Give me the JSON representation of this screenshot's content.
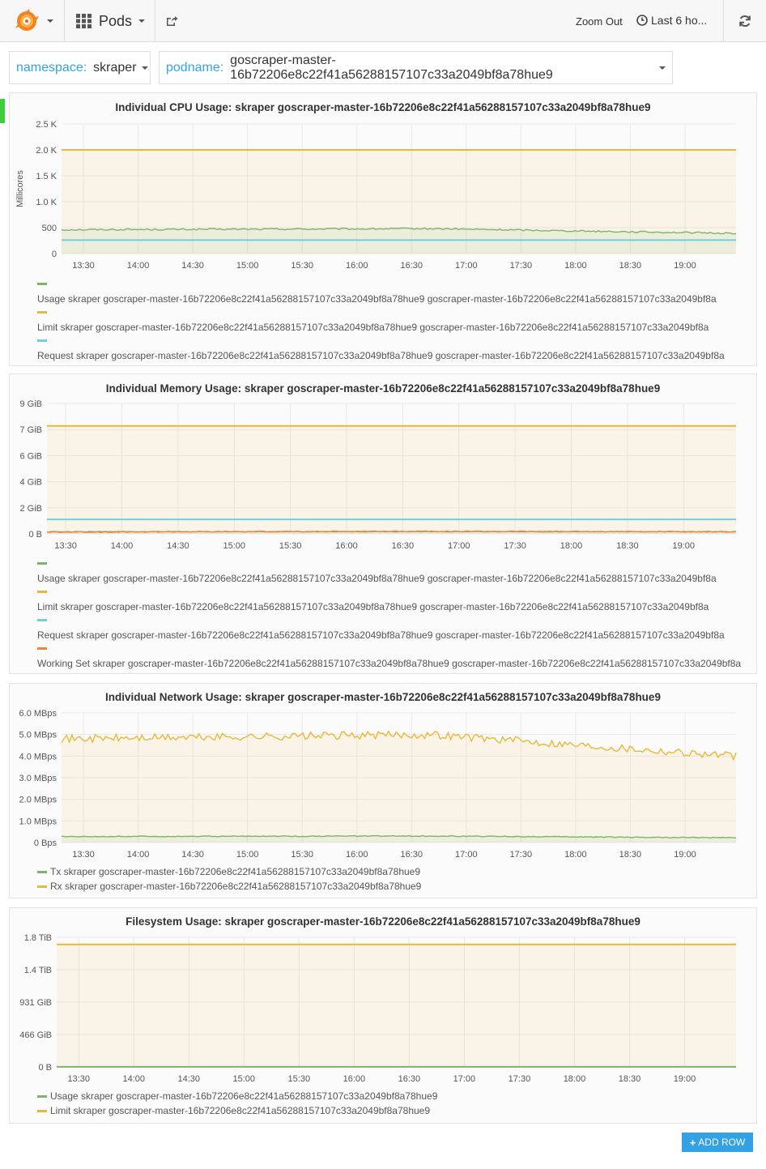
{
  "navbar": {
    "dashboard_title": "Pods",
    "zoom_out": "Zoom Out",
    "time_range": "Last 6 ho..."
  },
  "icons": {
    "logo": "grafana-logo-icon",
    "dashboard": "grid-icon",
    "share": "share-icon",
    "time": "clock-icon",
    "refresh": "refresh-icon"
  },
  "variables": {
    "namespace": {
      "label": "namespace:",
      "value": "skraper"
    },
    "podname": {
      "label": "podname:",
      "value": "goscraper-master-16b72206e8c22f41a56288157107c33a2049bf8a78hue9"
    }
  },
  "add_row": {
    "plus": "+",
    "label": "ADD ROW"
  },
  "colors": {
    "green": "#7eb26d",
    "yellow": "#eab839",
    "cyan": "#6ed0e0",
    "orange": "#ef843c",
    "accent": "#33a2e5"
  },
  "chart_data": [
    {
      "type": "line",
      "title": "Individual CPU Usage: skraper goscraper-master-16b72206e8c22f41a56288157107c33a2049bf8a78hue9",
      "ylabel": "Millicores",
      "ylim": [
        0,
        2500
      ],
      "yticks": [
        "2.5 K",
        "2.0 K",
        "1.5 K",
        "1.0 K",
        "500",
        "0"
      ],
      "x_range": [
        "13:18",
        "19:28"
      ],
      "x_ticks": [
        "13:30",
        "14:00",
        "14:30",
        "15:00",
        "15:30",
        "16:00",
        "16:30",
        "17:00",
        "17:30",
        "18:00",
        "18:30",
        "19:00"
      ],
      "grid": true,
      "legend_position": "bottom",
      "series": [
        {
          "name": "Usage skraper goscraper-master-16b72206e8c22f41a56288157107c33a2049bf8a78hue9 goscraper-master-16b72206e8c22f41a56288157107c33a2049bf8a",
          "color": "#7eb26d",
          "fill": true,
          "start": 460,
          "end": 390,
          "mid": 480,
          "noise": 15
        },
        {
          "name": "Limit skraper goscraper-master-16b72206e8c22f41a56288157107c33a2049bf8a78hue9 goscraper-master-16b72206e8c22f41a56288157107c33a2049bf8a",
          "color": "#eab839",
          "fill": true,
          "start": 2000,
          "end": 2000,
          "mid": 2000,
          "noise": 0
        },
        {
          "name": "Request skraper goscraper-master-16b72206e8c22f41a56288157107c33a2049bf8a78hue9 goscraper-master-16b72206e8c22f41a56288157107c33a2049bf8a",
          "color": "#6ed0e0",
          "fill": false,
          "start": 260,
          "end": 260,
          "mid": 260,
          "noise": 0
        }
      ]
    },
    {
      "type": "line",
      "title": "Individual Memory Usage: skraper goscraper-master-16b72206e8c22f41a56288157107c33a2049bf8a78hue9",
      "ylabel": "",
      "ylim": [
        0,
        9
      ],
      "yticks": [
        "9 GiB",
        "7 GiB",
        "6 GiB",
        "4 GiB",
        "2 GiB",
        "0 B"
      ],
      "x_range": [
        "13:20",
        "19:28"
      ],
      "x_ticks": [
        "13:30",
        "14:00",
        "14:30",
        "15:00",
        "15:30",
        "16:00",
        "16:30",
        "17:00",
        "17:30",
        "18:00",
        "18:30",
        "19:00"
      ],
      "grid": true,
      "legend_position": "bottom",
      "series": [
        {
          "name": "Usage skraper goscraper-master-16b72206e8c22f41a56288157107c33a2049bf8a78hue9 goscraper-master-16b72206e8c22f41a56288157107c33a2049bf8a",
          "color": "#7eb26d",
          "fill": true,
          "start": 0.15,
          "end": 0.15,
          "mid": 0.15,
          "noise": 0.02
        },
        {
          "name": "Limit skraper goscraper-master-16b72206e8c22f41a56288157107c33a2049bf8a78hue9 goscraper-master-16b72206e8c22f41a56288157107c33a2049bf8a",
          "color": "#eab839",
          "fill": true,
          "start": 7.45,
          "end": 7.45,
          "mid": 7.45,
          "noise": 0
        },
        {
          "name": "Request skraper goscraper-master-16b72206e8c22f41a56288157107c33a2049bf8a78hue9 goscraper-master-16b72206e8c22f41a56288157107c33a2049bf8a",
          "color": "#6ed0e0",
          "fill": false,
          "start": 1.0,
          "end": 1.0,
          "mid": 1.0,
          "noise": 0
        },
        {
          "name": "Working Set skraper goscraper-master-16b72206e8c22f41a56288157107c33a2049bf8a78hue9 goscraper-master-16b72206e8c22f41a56288157107c33a2049bf8a",
          "color": "#ef843c",
          "fill": false,
          "start": 0.12,
          "end": 0.14,
          "mid": 0.18,
          "noise": 0.03
        }
      ]
    },
    {
      "type": "line",
      "title": "Individual Network Usage: skraper goscraper-master-16b72206e8c22f41a56288157107c33a2049bf8a78hue9",
      "ylabel": "",
      "ylim": [
        0,
        6
      ],
      "yticks": [
        "6.0 MBps",
        "5.0 MBps",
        "4.0 MBps",
        "3.0 MBps",
        "2.0 MBps",
        "1.0 MBps",
        "0 Bps"
      ],
      "x_range": [
        "13:18",
        "19:28"
      ],
      "x_ticks": [
        "13:30",
        "14:00",
        "14:30",
        "15:00",
        "15:30",
        "16:00",
        "16:30",
        "17:00",
        "17:30",
        "18:00",
        "18:30",
        "19:00"
      ],
      "grid": true,
      "legend_position": "bottom",
      "series": [
        {
          "name": "Tx skraper goscraper-master-16b72206e8c22f41a56288157107c33a2049bf8a78hue9",
          "color": "#7eb26d",
          "fill": true,
          "start": 0.28,
          "end": 0.22,
          "mid": 0.3,
          "noise": 0.02
        },
        {
          "name": "Rx skraper goscraper-master-16b72206e8c22f41a56288157107c33a2049bf8a78hue9",
          "color": "#eab839",
          "fill": true,
          "start": 4.8,
          "end": 4.0,
          "mid": 5.0,
          "noise": 0.18
        }
      ]
    },
    {
      "type": "line",
      "title": "Filesystem Usage: skraper goscraper-master-16b72206e8c22f41a56288157107c33a2049bf8a78hue9",
      "ylabel": "",
      "ylim": [
        0,
        1.82
      ],
      "yticks": [
        "1.8 TiB",
        "1.4 TiB",
        "931 GiB",
        "466 GiB",
        "0 B"
      ],
      "x_range": [
        "13:18",
        "19:28"
      ],
      "x_ticks": [
        "13:30",
        "14:00",
        "14:30",
        "15:00",
        "15:30",
        "16:00",
        "16:30",
        "17:00",
        "17:30",
        "18:00",
        "18:30",
        "19:00"
      ],
      "grid": true,
      "legend_position": "bottom",
      "series": [
        {
          "name": "Usage skraper goscraper-master-16b72206e8c22f41a56288157107c33a2049bf8a78hue9",
          "color": "#7eb26d",
          "fill": true,
          "start": 0.001,
          "end": 0.001,
          "mid": 0.001,
          "noise": 0
        },
        {
          "name": "Limit skraper goscraper-master-16b72206e8c22f41a56288157107c33a2049bf8a78hue9",
          "color": "#eab839",
          "fill": true,
          "start": 1.72,
          "end": 1.72,
          "mid": 1.72,
          "noise": 0
        }
      ]
    }
  ]
}
